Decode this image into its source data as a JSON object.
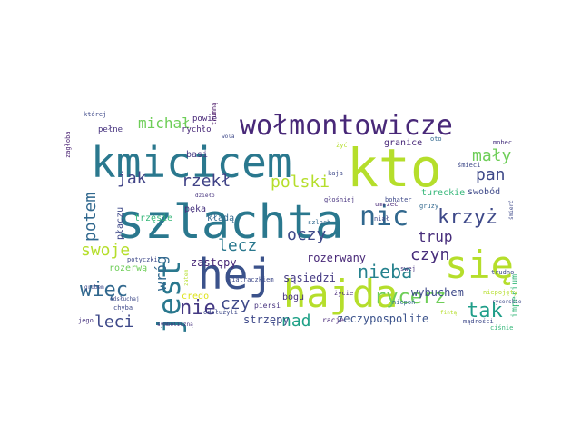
{
  "words": [
    {
      "text": "kto",
      "color": "#b5de2b"
    },
    {
      "text": "szlachta",
      "color": "#2a788e"
    },
    {
      "text": "kmicicem",
      "color": "#2a788e"
    },
    {
      "text": "hej",
      "color": "#3b528b"
    },
    {
      "text": "hajda",
      "color": "#b5de2b"
    },
    {
      "text": "się",
      "color": "#b5de2b"
    },
    {
      "text": "wołmontowicze",
      "color": "#482878"
    },
    {
      "text": "jest",
      "color": "#2a788e"
    },
    {
      "text": "nic",
      "color": "#31688e"
    },
    {
      "text": "krzyż",
      "color": "#3e4989"
    },
    {
      "text": "nie",
      "color": "#443983"
    },
    {
      "text": "rycerz",
      "color": "#6ece58"
    },
    {
      "text": "tak",
      "color": "#1f9e89"
    },
    {
      "text": "więc",
      "color": "#31688e"
    },
    {
      "text": "polski",
      "color": "#b5de2b"
    },
    {
      "text": "nieba",
      "color": "#26828e"
    },
    {
      "text": "potem",
      "color": "#31688e"
    },
    {
      "text": "wróg",
      "color": "#31688e"
    },
    {
      "text": "mały",
      "color": "#6ece58"
    },
    {
      "text": "pan",
      "color": "#3e4989"
    },
    {
      "text": "czyn",
      "color": "#472d7b"
    },
    {
      "text": "lecz",
      "color": "#2a788e"
    },
    {
      "text": "oczy",
      "color": "#3e4989"
    },
    {
      "text": "leci",
      "color": "#3e4989"
    },
    {
      "text": "swoje",
      "color": "#b5de2b"
    },
    {
      "text": "jak",
      "color": "#414487"
    },
    {
      "text": "rzekł",
      "color": "#414487"
    },
    {
      "text": "michał",
      "color": "#6ece58"
    },
    {
      "text": "czy",
      "color": "#3e4989"
    },
    {
      "text": "nad",
      "color": "#1fa187"
    },
    {
      "text": "trup",
      "color": "#472d7b"
    },
    {
      "text": "rozerwany",
      "color": "#482878"
    },
    {
      "text": "wybuchem",
      "color": "#3e4989"
    },
    {
      "text": "zeczypospolite",
      "color": "#3b528b"
    },
    {
      "text": "sąsiedzi",
      "color": "#443983"
    },
    {
      "text": "strzępy",
      "color": "#3e4989"
    },
    {
      "text": "zastępy",
      "color": "#482878"
    },
    {
      "text": "granice",
      "color": "#482878"
    },
    {
      "text": "tureckie",
      "color": "#35b779"
    },
    {
      "text": "swobód",
      "color": "#3e4989"
    },
    {
      "text": "imperium",
      "color": "#35b779"
    },
    {
      "text": "rozerwą",
      "color": "#6ece58"
    },
    {
      "text": "bogu",
      "color": "#46327e"
    },
    {
      "text": "pęka",
      "color": "#46327e"
    },
    {
      "text": "kładą",
      "color": "#31688e"
    },
    {
      "text": "trzęsie",
      "color": "#35b779"
    },
    {
      "text": "płaczu",
      "color": "#3e4989"
    },
    {
      "text": "basi",
      "color": "#443983"
    },
    {
      "text": "credo",
      "color": "#dde318"
    },
    {
      "text": "powie",
      "color": "#482878"
    },
    {
      "text": "rychło",
      "color": "#482878"
    },
    {
      "text": "pełne",
      "color": "#46327e"
    },
    {
      "text": "trumną",
      "color": "#471365"
    },
    {
      "text": "której",
      "color": "#3e4989"
    },
    {
      "text": "zagłoba",
      "color": "#481f70"
    },
    {
      "text": "życie",
      "color": "#482878"
    },
    {
      "text": "piersi",
      "color": "#46327e"
    },
    {
      "text": "racje",
      "color": "#482878"
    },
    {
      "text": "odsłużyli",
      "color": "#3e4989"
    },
    {
      "text": "kaja",
      "color": "#3e4989"
    },
    {
      "text": "szloch",
      "color": "#31688e"
    },
    {
      "text": "gruzy",
      "color": "#31688e"
    },
    {
      "text": "bohater",
      "color": "#3e4989"
    },
    {
      "text": "umrzeć",
      "color": "#482878"
    },
    {
      "text": "niał",
      "color": "#3e4989"
    },
    {
      "text": "głośniej",
      "color": "#46327e"
    },
    {
      "text": "chyba",
      "color": "#3e4989"
    },
    {
      "text": "jego",
      "color": "#46327e"
    },
    {
      "text": "grobem",
      "color": "#3e4989"
    },
    {
      "text": "potyczki",
      "color": "#3e4989"
    },
    {
      "text": "odsłuchaj",
      "color": "#3e4989"
    },
    {
      "text": "symboliczną",
      "color": "#46327e"
    },
    {
      "text": "mądrości",
      "color": "#3e4989"
    },
    {
      "text": "ciśnie",
      "color": "#35b779"
    },
    {
      "text": "niepojęty",
      "color": "#b5de2b"
    },
    {
      "text": "mobec",
      "color": "#46327e"
    },
    {
      "text": "oto",
      "color": "#31688e"
    },
    {
      "text": "śmierć",
      "color": "#3e4989"
    },
    {
      "text": "swej",
      "color": "#46327e"
    },
    {
      "text": "wiatraczkiem",
      "color": "#3e4989"
    },
    {
      "text": "nicpoń",
      "color": "#31688e"
    },
    {
      "text": "fintą",
      "color": "#b5de2b"
    },
    {
      "text": "rycerskie",
      "color": "#3e4989"
    },
    {
      "text": "dzieło",
      "color": "#46327e"
    },
    {
      "text": "wola",
      "color": "#3e4989"
    },
    {
      "text": "trudno",
      "color": "#3e4989"
    },
    {
      "text": "żyć",
      "color": "#b5de2b"
    },
    {
      "text": "zatem",
      "color": "#b5de2b"
    },
    {
      "text": "śmieci",
      "color": "#3e4989"
    }
  ]
}
